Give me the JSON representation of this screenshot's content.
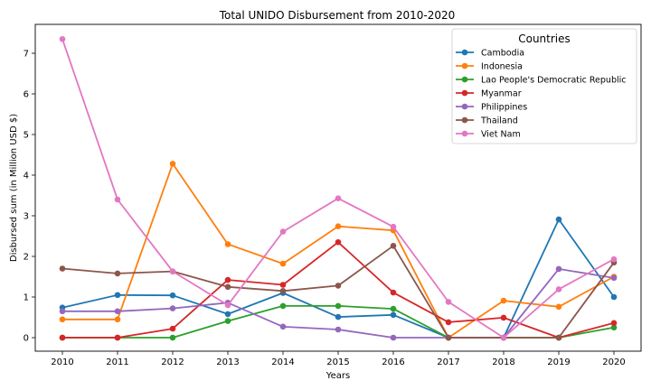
{
  "chart_data": {
    "type": "line",
    "title": "Total UNIDO Disbursement from 2010-2020",
    "xlabel": "Years",
    "ylabel": "Disbursed sum (in Million USD $)",
    "x": [
      2010,
      2011,
      2012,
      2013,
      2014,
      2015,
      2016,
      2017,
      2018,
      2019,
      2020
    ],
    "x_ticks": [
      "2010",
      "2011",
      "2012",
      "2013",
      "2014",
      "2015",
      "2016",
      "2017",
      "2018",
      "2019",
      "2020"
    ],
    "y_ticks": [
      "0",
      "1",
      "2",
      "3",
      "4",
      "5",
      "6",
      "7"
    ],
    "ylim": [
      -0.35,
      7.7
    ],
    "grid": false,
    "legend": {
      "title": "Countries",
      "placement": "top-right"
    },
    "series": [
      {
        "name": "Cambodia",
        "color": "#1f77b4",
        "values": [
          0.74,
          1.05,
          1.04,
          0.58,
          1.1,
          0.51,
          0.56,
          0.0,
          0.0,
          2.91,
          1.0
        ]
      },
      {
        "name": "Indonesia",
        "color": "#ff7f0e",
        "values": [
          0.45,
          0.45,
          4.28,
          2.3,
          1.82,
          2.74,
          2.64,
          0.0,
          0.91,
          0.76,
          1.5
        ]
      },
      {
        "name": "Lao People's Democratic Republic",
        "color": "#2ca02c",
        "values": [
          0.0,
          0.0,
          0.0,
          0.41,
          0.78,
          0.78,
          0.71,
          0.0,
          0.0,
          0.0,
          0.25
        ]
      },
      {
        "name": "Myanmar",
        "color": "#d62728",
        "values": [
          0.0,
          0.0,
          0.22,
          1.42,
          1.3,
          2.35,
          1.11,
          0.38,
          0.49,
          0.0,
          0.36
        ]
      },
      {
        "name": "Philippines",
        "color": "#9467bd",
        "values": [
          0.65,
          0.65,
          0.72,
          0.86,
          0.27,
          0.2,
          0.0,
          0.0,
          0.0,
          1.69,
          1.47
        ]
      },
      {
        "name": "Thailand",
        "color": "#8c564b",
        "values": [
          1.7,
          1.58,
          1.63,
          1.25,
          1.15,
          1.28,
          2.26,
          0.0,
          0.0,
          0.0,
          1.85
        ]
      },
      {
        "name": "Viet Nam",
        "color": "#e377c2",
        "values": [
          7.35,
          3.4,
          1.63,
          0.8,
          2.61,
          3.43,
          2.73,
          0.88,
          0.0,
          1.19,
          1.93
        ]
      }
    ]
  }
}
